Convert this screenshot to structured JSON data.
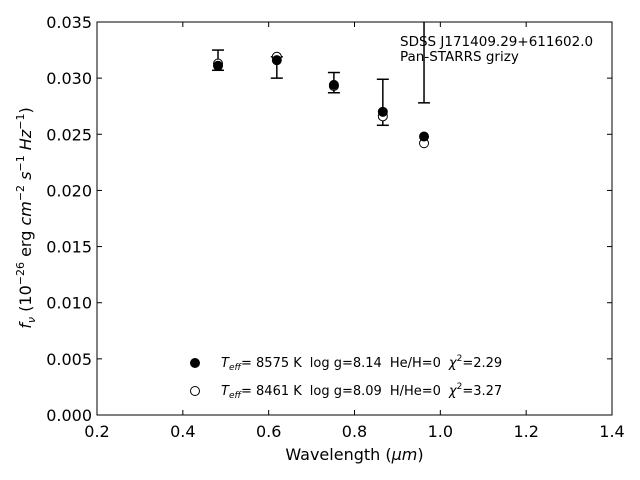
{
  "chart_data": {
    "type": "scatter",
    "xlabel_parts": [
      "Wavelength (",
      "μm",
      ")"
    ],
    "ylabel_parts": [
      "f",
      "ν",
      " (10",
      "−26",
      " erg ",
      "cm",
      "−2",
      " ",
      "s",
      "−1",
      " ",
      "Hz",
      "−1",
      ")"
    ],
    "xlim": [
      0.2,
      1.4
    ],
    "ylim": [
      0.0,
      0.035
    ],
    "x_ticks": [
      "0.2",
      "0.4",
      "0.6",
      "0.8",
      "1.0",
      "1.2",
      "1.4"
    ],
    "y_ticks": [
      "0.000",
      "0.005",
      "0.010",
      "0.015",
      "0.020",
      "0.025",
      "0.030",
      "0.035"
    ],
    "annotation": [
      "SDSS J171409.29+611602.0",
      "Pan-STARRS grizy"
    ],
    "observed": [
      {
        "x": 0.482,
        "y": 0.0312,
        "ylo": 0.0307,
        "yhi": 0.0325
      },
      {
        "x": 0.619,
        "y": 0.0315,
        "ylo": 0.03,
        "yhi": 0.0319
      },
      {
        "x": 0.752,
        "y": 0.0296,
        "ylo": 0.0287,
        "yhi": 0.0305
      },
      {
        "x": 0.866,
        "y": 0.027,
        "ylo": 0.0258,
        "yhi": 0.0299
      },
      {
        "x": 0.962,
        "y": 0.0248,
        "ylo": 0.0278,
        "yhi": 0.035
      }
    ],
    "series": [
      {
        "marker": "filled-circle",
        "x": [
          0.482,
          0.619,
          0.752,
          0.866,
          0.962
        ],
        "y": [
          0.0311,
          0.0316,
          0.0294,
          0.027,
          0.0248
        ],
        "legend": {
          "teff_label": "T",
          "teff_sub": "eff",
          "teff_value": "=  8575 K",
          "logg": "log g=8.14",
          "comp": "He/H=0",
          "chi_label": "χ",
          "chi_exp": "2",
          "chi_value": "=2.29"
        }
      },
      {
        "marker": "open-circle",
        "x": [
          0.482,
          0.619,
          0.752,
          0.866,
          0.962
        ],
        "y": [
          0.0313,
          0.0319,
          0.0293,
          0.0266,
          0.0242
        ],
        "legend": {
          "teff_label": "T",
          "teff_sub": "eff",
          "teff_value": "=  8461 K",
          "logg": "log g=8.09",
          "comp": "H/He=0",
          "chi_label": "χ",
          "chi_exp": "2",
          "chi_value": "=3.27"
        }
      }
    ],
    "colors": {
      "axes": "#000000",
      "marker_fill": "#000000",
      "marker_open": "#ffffff"
    }
  }
}
